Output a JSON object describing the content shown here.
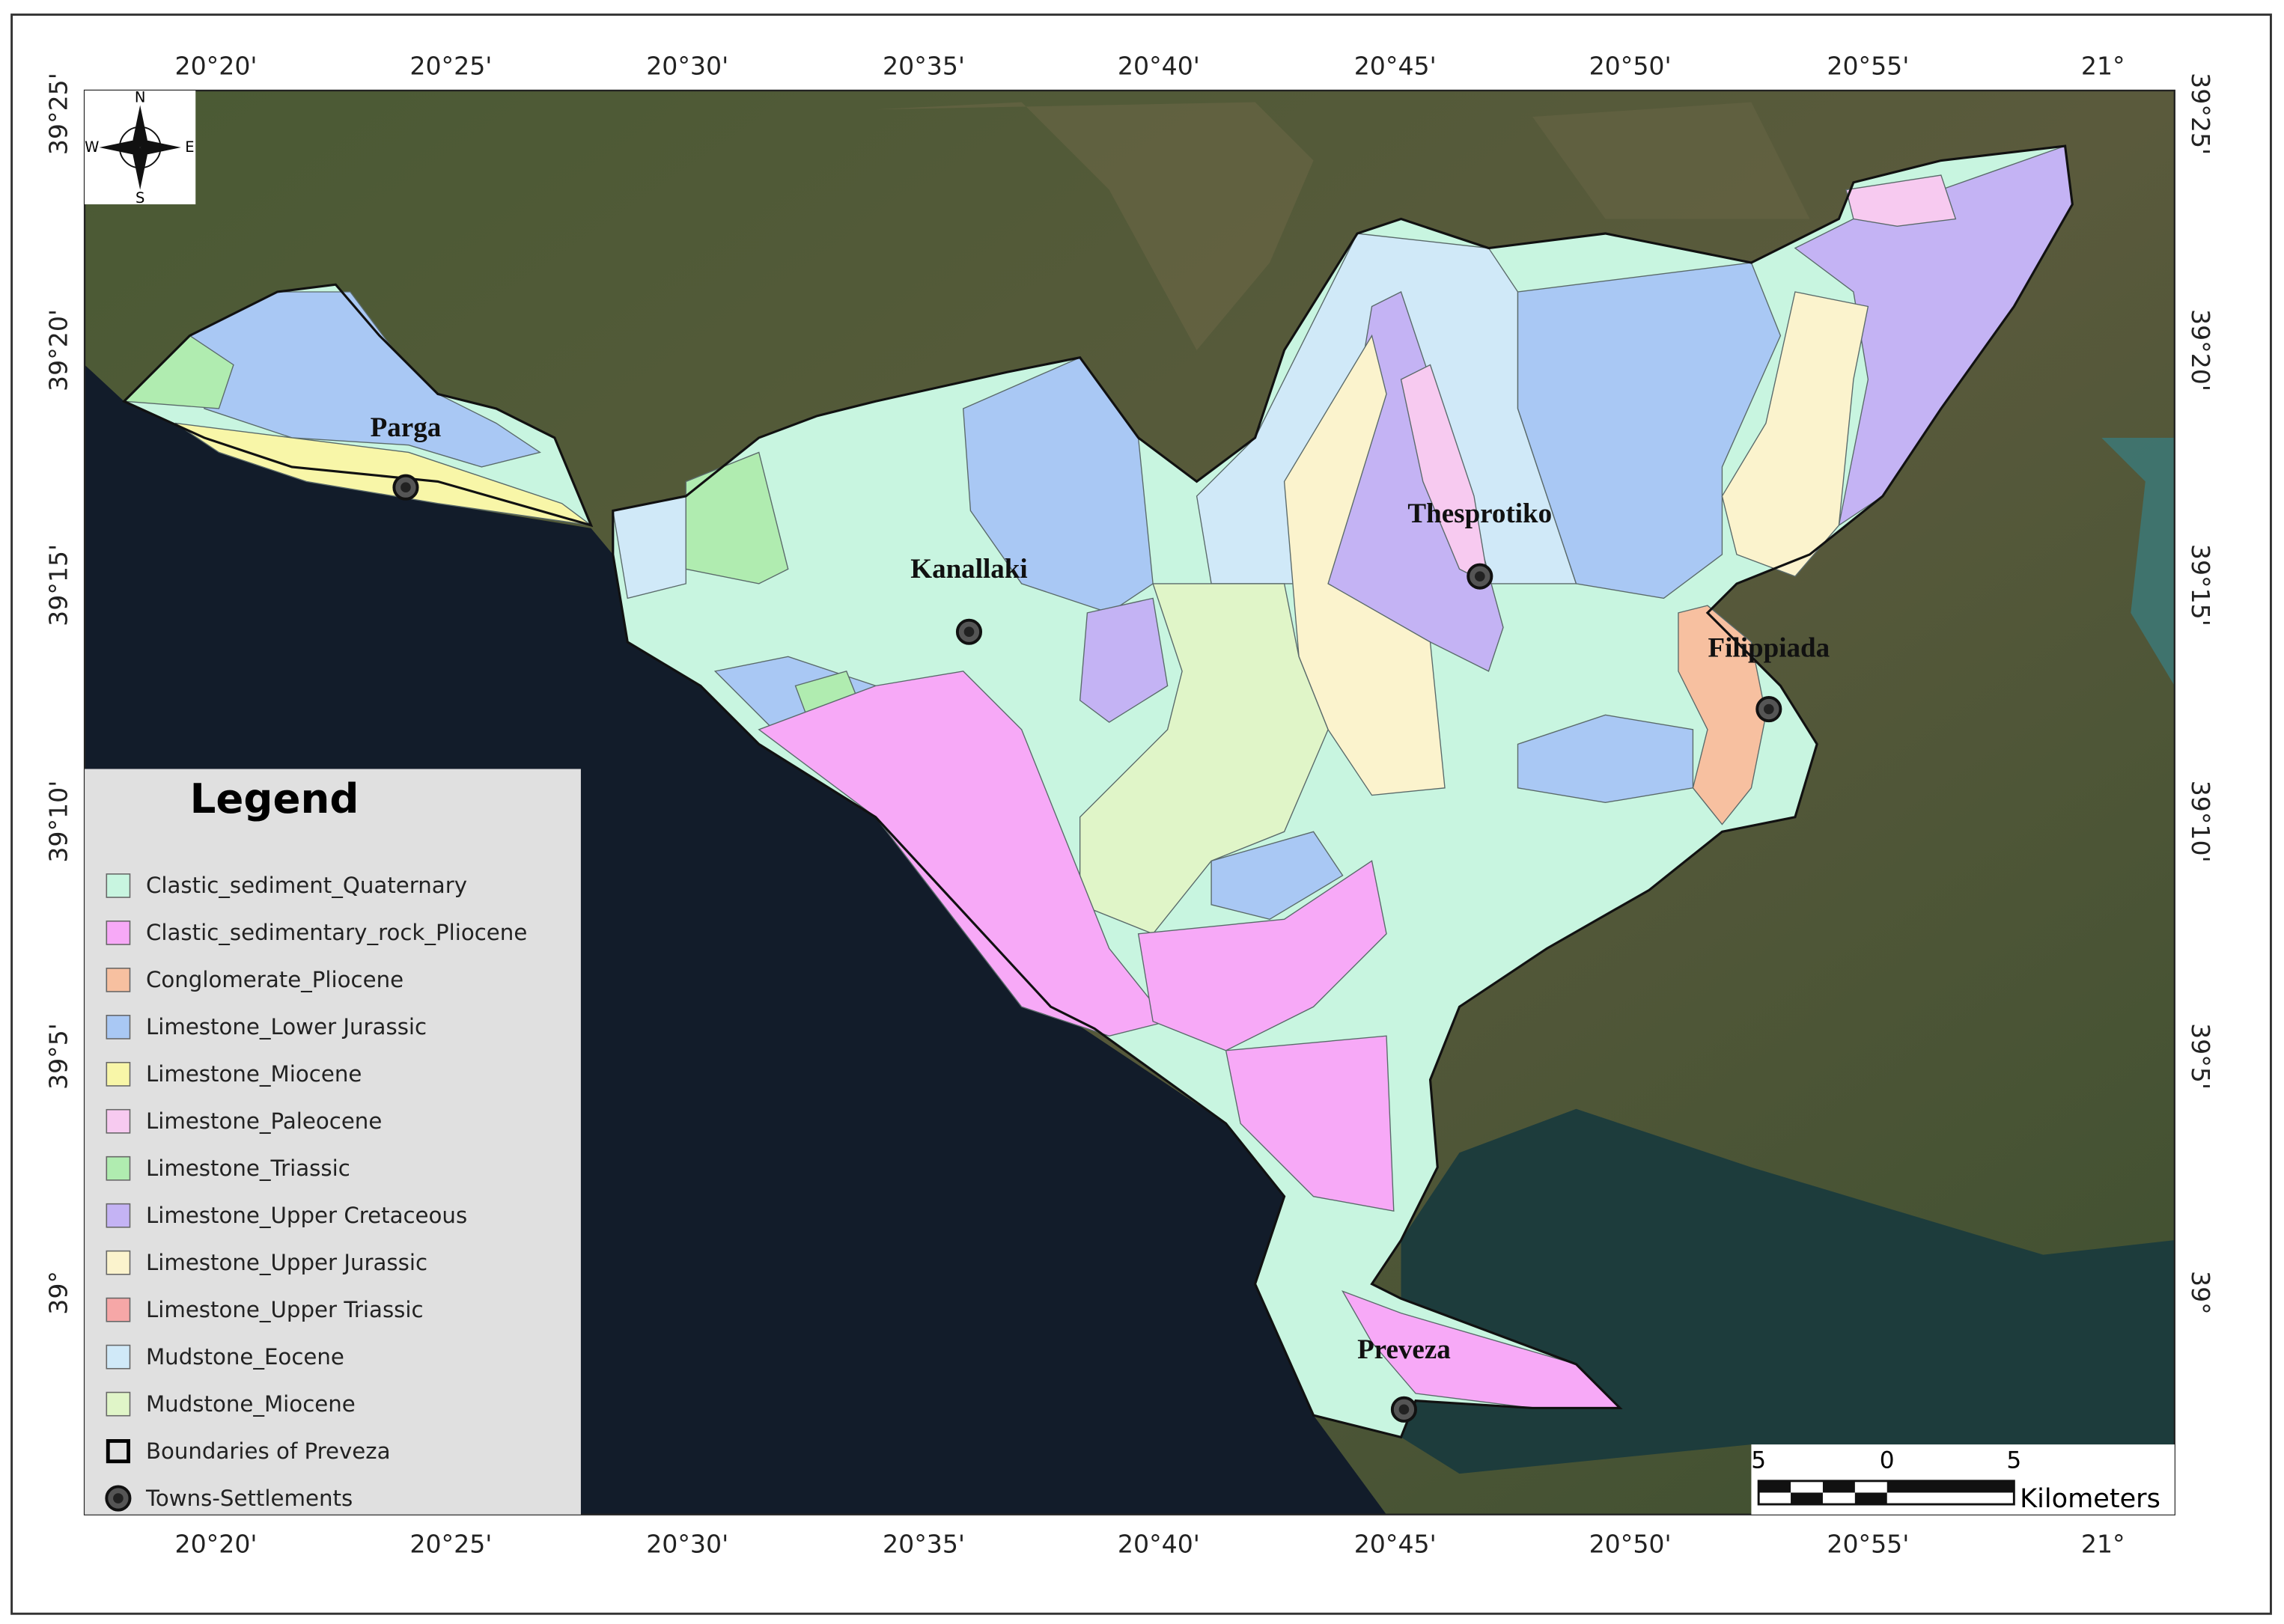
{
  "map": {
    "longitude_labels": [
      "20°20'",
      "20°25'",
      "20°30'",
      "20°35'",
      "20°40'",
      "20°45'",
      "20°50'",
      "20°55'",
      "21°"
    ],
    "latitude_labels": [
      "39°25'",
      "39°20'",
      "39°15'",
      "39°10'",
      "39°5'",
      "39°"
    ],
    "compass": {
      "n": "N",
      "s": "S",
      "e": "E",
      "w": "W"
    },
    "legend": {
      "title": "Legend",
      "items": [
        {
          "name": "Clastic_sediment_Quaternary",
          "color": "#c8f5e0"
        },
        {
          "name": "Clastic_sedimentary_rock_Pliocene",
          "color": "#f7a9f7"
        },
        {
          "name": "Conglomerate_Pliocene",
          "color": "#f7c0a0"
        },
        {
          "name": "Limestone_Lower Jurassic",
          "color": "#a9c8f4"
        },
        {
          "name": "Limestone_Miocene",
          "color": "#f8f6a8"
        },
        {
          "name": "Limestone_Paleocene",
          "color": "#f7caf0"
        },
        {
          "name": "Limestone_Triassic",
          "color": "#b0ecb0"
        },
        {
          "name": "Limestone_Upper Cretaceous",
          "color": "#c4b3f4"
        },
        {
          "name": "Limestone_Upper Jurassic",
          "color": "#fbf3cd"
        },
        {
          "name": "Limestone_Upper Triassic",
          "color": "#f6a7a7"
        },
        {
          "name": "Mudstone_Eocene",
          "color": "#d0e9f8"
        },
        {
          "name": "Mudstone_Miocene",
          "color": "#e0f5c8"
        }
      ],
      "boundary": "Boundaries of Preveza",
      "towns": "Towns-Settlements"
    },
    "towns": [
      "Parga",
      "Kanallaki",
      "Thesprotiko",
      "Filippiada",
      "Preveza"
    ],
    "scale_bar": {
      "labels": [
        "5",
        "0",
        "5"
      ],
      "unit": "Kilometers"
    }
  }
}
